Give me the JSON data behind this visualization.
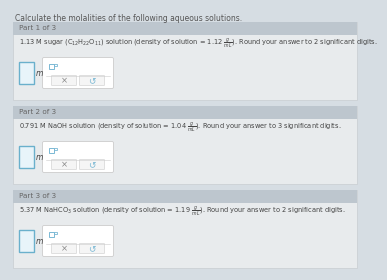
{
  "title": "Calculate the molalities of the following aqueous solutions.",
  "title_fontsize": 5.5,
  "title_color": "#555555",
  "bg_color": "#d6dde3",
  "panel_header_color": "#bdc6ce",
  "panel_bg_color": "#e8ebed",
  "panel_edge_color": "#c8cdd1",
  "input_border_color": "#6ab0cc",
  "input_fill_color": "#e8f4fa",
  "ans_box_fill": "#ffffff",
  "ans_box_edge": "#cccccc",
  "btn_fill": "#f5f5f5",
  "btn_edge": "#cccccc",
  "icon_color": "#7ab8d4",
  "text_color": "#444444",
  "header_color": "#666666",
  "parts": [
    {
      "header": "Part 1 of 3",
      "problem_text": "1.13 M sugar ($\\mathrm{C_{12}H_{22}O_{11}}$) solution (density of solution = 1.12 $\\frac{g}{mL}$). Round your answer to 2 significant digits."
    },
    {
      "header": "Part 2 of 3",
      "problem_text": "0.791 M NaOH solution (density of solution = 1.04 $\\frac{g}{mL}$). Round your answer to 3 significant digits."
    },
    {
      "header": "Part 3 of 3",
      "problem_text": "5.37 M NaHCO$_3$ solution (density of solution = 1.19 $\\frac{g}{mL}$). Round your answer to 2 significant digits."
    }
  ]
}
